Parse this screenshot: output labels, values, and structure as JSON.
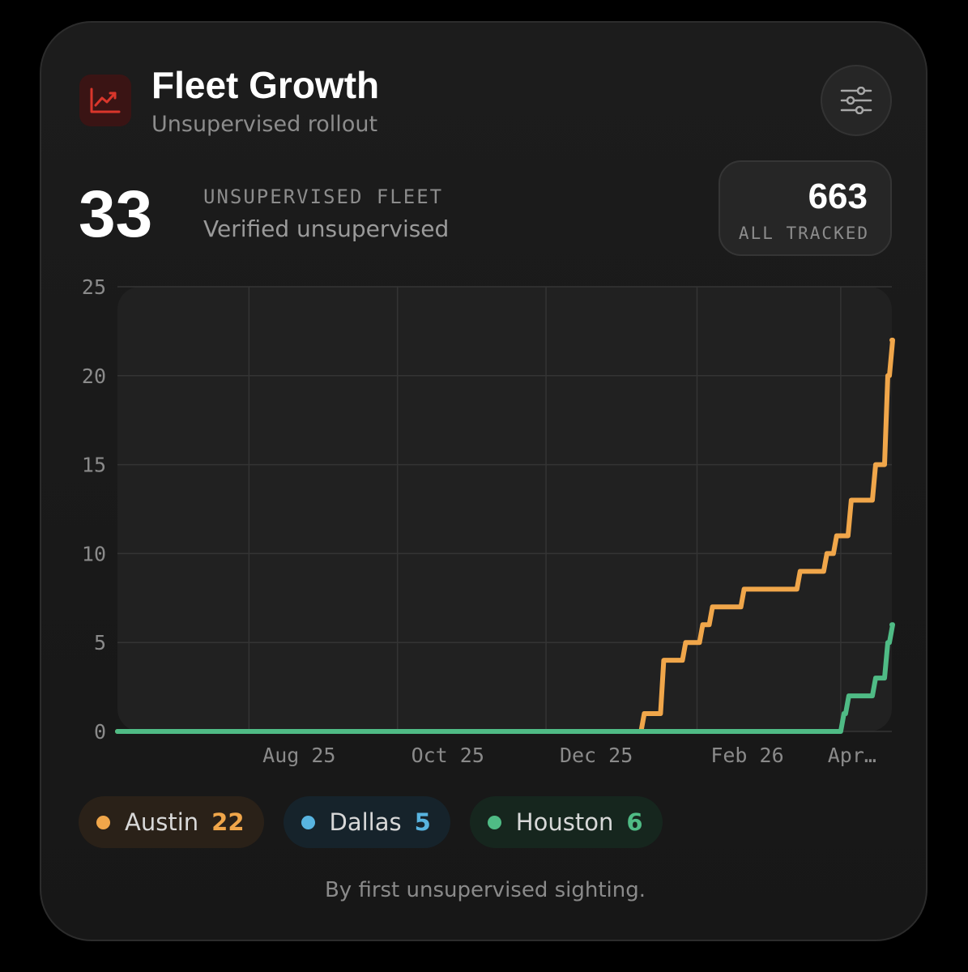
{
  "header": {
    "icon": "trend-up-icon",
    "title": "Fleet Growth",
    "subtitle": "Unsupervised rollout",
    "settings_icon": "sliders-icon"
  },
  "metric": {
    "value": "33",
    "label": "UNSUPERVISED FLEET",
    "description": "Verified unsupervised"
  },
  "tracked": {
    "value": "663",
    "label": "ALL TRACKED"
  },
  "chart_data": {
    "type": "line",
    "step": true,
    "x_range": [
      "2025-06-08",
      "2026-04-22"
    ],
    "ylim": [
      0,
      25
    ],
    "y_ticks": [
      0,
      5,
      10,
      15,
      20,
      25
    ],
    "x_tick_dates": [
      "2025-08-01",
      "2025-10-01",
      "2025-12-01",
      "2026-02-01",
      "2026-04-01"
    ],
    "x_tick_labels": [
      "Aug 25",
      "Oct 25",
      "Dec 25",
      "Feb 26",
      "Apr…"
    ],
    "grid": true,
    "series": [
      {
        "name": "Austin",
        "color": "#f0a64a",
        "points": [
          [
            "2025-06-08",
            0
          ],
          [
            "2026-01-10",
            1
          ],
          [
            "2026-01-18",
            4
          ],
          [
            "2026-01-27",
            5
          ],
          [
            "2026-02-03",
            6
          ],
          [
            "2026-02-07",
            7
          ],
          [
            "2026-02-20",
            8
          ],
          [
            "2026-03-15",
            9
          ],
          [
            "2026-03-26",
            10
          ],
          [
            "2026-03-30",
            11
          ],
          [
            "2026-04-05",
            13
          ],
          [
            "2026-04-15",
            15
          ],
          [
            "2026-04-20",
            20
          ],
          [
            "2026-04-22",
            22
          ]
        ]
      },
      {
        "name": "Houston",
        "color": "#4fbb85",
        "points": [
          [
            "2025-06-08",
            0
          ],
          [
            "2026-04-02",
            1
          ],
          [
            "2026-04-04",
            2
          ],
          [
            "2026-04-15",
            3
          ],
          [
            "2026-04-20",
            5
          ],
          [
            "2026-04-22",
            6
          ]
        ]
      }
    ]
  },
  "legend": [
    {
      "name": "Austin",
      "count": "22",
      "color": "#f0a64a",
      "bg": "#2a2118"
    },
    {
      "name": "Dallas",
      "count": "5",
      "color": "#58b4e0",
      "bg": "#16232b"
    },
    {
      "name": "Houston",
      "count": "6",
      "color": "#4fbb85",
      "bg": "#16261e"
    }
  ],
  "footnote": "By first unsupervised sighting."
}
